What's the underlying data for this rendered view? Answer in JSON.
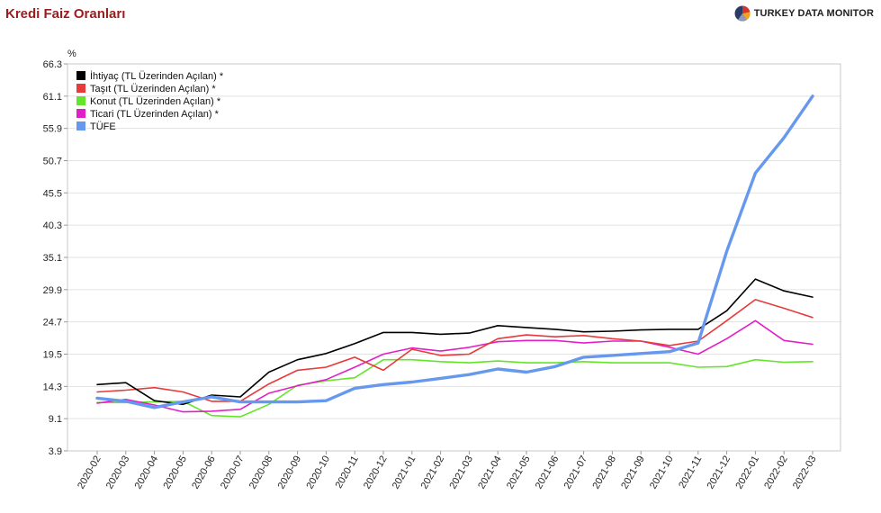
{
  "header": {
    "title": "Kredi Faiz Oranları",
    "brand": "TURKEY DATA MONITOR"
  },
  "chart_data": {
    "type": "line",
    "title": "",
    "xlabel": "",
    "ylabel": "%",
    "ylim": [
      3.9,
      66.3
    ],
    "yticks": [
      "3.9",
      "9.1",
      "14.3",
      "19.5",
      "24.7",
      "29.9",
      "35.1",
      "40.3",
      "45.5",
      "50.7",
      "55.9",
      "61.1",
      "66.3"
    ],
    "grid": "horizontal",
    "legend_position": "top-left",
    "categories": [
      "2020-02",
      "2020-03",
      "2020-04",
      "2020-05",
      "2020-06",
      "2020-07",
      "2020-08",
      "2020-09",
      "2020-10",
      "2020-11",
      "2020-12",
      "2021-01",
      "2021-02",
      "2021-03",
      "2021-04",
      "2021-05",
      "2021-06",
      "2021-07",
      "2021-08",
      "2021-09",
      "2021-10",
      "2021-11",
      "2021-12",
      "2022-01",
      "2022-02",
      "2022-03"
    ],
    "series": [
      {
        "name": "İhtiyaç (TL Üzerinden Açılan) *",
        "color": "#000000",
        "values": [
          14.6,
          14.9,
          12.0,
          11.4,
          12.9,
          12.6,
          16.6,
          18.6,
          19.6,
          21.2,
          23.0,
          23.0,
          22.7,
          22.9,
          24.1,
          23.8,
          23.5,
          23.1,
          23.2,
          23.4,
          23.5,
          23.5,
          26.5,
          31.6,
          29.7,
          28.7
        ]
      },
      {
        "name": "Taşıt (TL Üzerinden Açılan) *",
        "color": "#e83a3a",
        "values": [
          13.4,
          13.7,
          14.1,
          13.4,
          11.9,
          11.9,
          14.7,
          16.9,
          17.4,
          19.0,
          16.9,
          20.3,
          19.3,
          19.5,
          22.0,
          22.6,
          22.3,
          22.5,
          22.0,
          21.6,
          20.9,
          21.6,
          24.9,
          28.3,
          26.9,
          25.4
        ]
      },
      {
        "name": "Konut (TL Üzerinden Açılan) *",
        "color": "#64e52a",
        "values": [
          11.7,
          11.7,
          11.8,
          11.9,
          9.6,
          9.4,
          11.4,
          14.5,
          15.2,
          15.7,
          18.6,
          18.6,
          18.3,
          18.1,
          18.4,
          18.1,
          18.1,
          18.3,
          18.1,
          18.1,
          18.1,
          17.4,
          17.5,
          18.6,
          18.2,
          18.3
        ]
      },
      {
        "name": "Ticari (TL Üzerinden Açılan) *",
        "color": "#e21fc7",
        "values": [
          11.6,
          12.2,
          11.3,
          10.2,
          10.3,
          10.6,
          13.2,
          14.4,
          15.4,
          17.4,
          19.5,
          20.5,
          20.0,
          20.6,
          21.5,
          21.7,
          21.7,
          21.3,
          21.6,
          21.6,
          20.6,
          19.5,
          22.0,
          24.9,
          21.7,
          21.1
        ]
      },
      {
        "name": "TÜFE",
        "color": "#6699ee",
        "values": [
          12.4,
          11.9,
          10.9,
          11.8,
          12.6,
          11.8,
          11.8,
          11.8,
          12.0,
          14.0,
          14.6,
          15.0,
          15.6,
          16.2,
          17.1,
          16.6,
          17.5,
          19.0,
          19.3,
          19.6,
          19.9,
          21.3,
          36.1,
          48.7,
          54.4,
          61.1
        ]
      }
    ]
  }
}
